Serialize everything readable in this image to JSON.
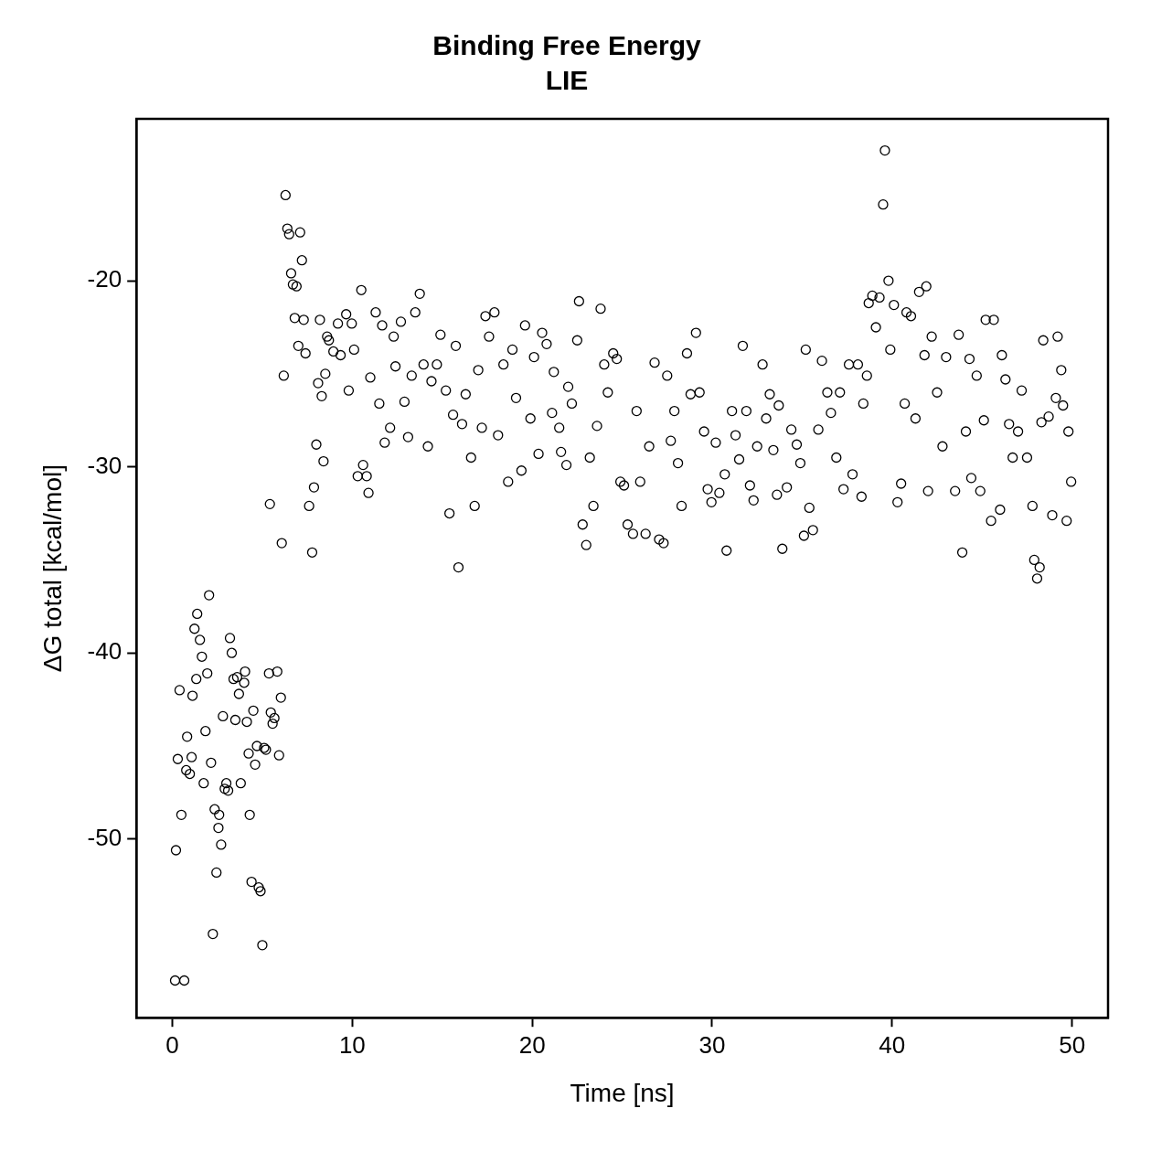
{
  "chart_data": {
    "type": "scatter",
    "title": "Binding Free Energy",
    "subtitle": "LIE",
    "xlabel": "Time [ns]",
    "ylabel": "ΔG total [kcal/mol]",
    "xlim": [
      -2,
      52
    ],
    "ylim": [
      -59.6,
      -11.3
    ],
    "xticks": [
      0,
      10,
      20,
      30,
      40,
      50
    ],
    "yticks": [
      -50,
      -40,
      -30,
      -20
    ],
    "grid": false,
    "legend": false,
    "marker": "circle",
    "series": [
      {
        "color": "#000000",
        "x": [
          0.15,
          0.66,
          0.2,
          0.5,
          0.4,
          0.3,
          0.77,
          0.97,
          0.82,
          1.07,
          1.12,
          1.23,
          1.38,
          1.53,
          1.64,
          1.33,
          1.74,
          1.84,
          1.94,
          2.04,
          2.15,
          2.25,
          2.35,
          2.45,
          2.56,
          2.6,
          2.71,
          2.81,
          2.91,
          3.0,
          3.1,
          3.2,
          3.3,
          3.4,
          3.5,
          3.6,
          3.7,
          3.8,
          3.99,
          4.04,
          4.14,
          4.24,
          4.3,
          4.4,
          4.5,
          4.6,
          4.7,
          4.8,
          4.9,
          5.0,
          5.1,
          5.2,
          5.37,
          5.47,
          5.57,
          5.67,
          5.83,
          5.93,
          6.03,
          5.42,
          6.08,
          6.19,
          6.29,
          6.39,
          6.49,
          6.6,
          6.7,
          6.8,
          6.9,
          7.0,
          7.1,
          7.2,
          7.3,
          7.4,
          7.6,
          7.77,
          7.87,
          8.0,
          8.1,
          8.2,
          8.3,
          8.4,
          8.5,
          8.6,
          8.7,
          8.95,
          9.2,
          9.35,
          9.66,
          9.8,
          9.97,
          10.1,
          10.3,
          10.5,
          10.6,
          10.8,
          10.9,
          11.0,
          11.3,
          11.5,
          11.66,
          11.8,
          12.1,
          12.3,
          12.4,
          12.7,
          12.9,
          13.1,
          13.3,
          13.5,
          13.75,
          13.96,
          14.2,
          14.4,
          14.7,
          14.9,
          15.2,
          15.4,
          15.6,
          15.75,
          15.9,
          16.1,
          16.3,
          16.6,
          16.8,
          17.0,
          17.2,
          17.4,
          17.6,
          17.9,
          18.1,
          18.4,
          18.66,
          18.9,
          19.1,
          19.4,
          19.6,
          19.9,
          20.1,
          20.35,
          20.55,
          20.8,
          21.1,
          21.2,
          21.5,
          21.6,
          21.9,
          22.0,
          22.2,
          22.5,
          22.6,
          22.8,
          23.0,
          23.2,
          23.4,
          23.6,
          23.8,
          24.0,
          24.2,
          24.5,
          24.7,
          24.9,
          25.1,
          25.3,
          25.6,
          25.8,
          26.0,
          26.3,
          26.5,
          26.8,
          27.05,
          27.3,
          27.5,
          27.7,
          27.9,
          28.1,
          28.3,
          28.6,
          28.8,
          29.1,
          29.3,
          29.55,
          29.75,
          29.96,
          30.2,
          30.4,
          30.7,
          30.8,
          31.1,
          31.3,
          31.5,
          31.7,
          31.9,
          32.1,
          32.3,
          32.5,
          32.8,
          33.0,
          33.2,
          33.4,
          33.6,
          33.7,
          33.9,
          34.15,
          34.4,
          34.7,
          34.9,
          35.1,
          35.2,
          35.4,
          35.6,
          35.9,
          36.1,
          36.4,
          36.6,
          36.9,
          37.1,
          37.3,
          37.6,
          37.8,
          38.1,
          38.3,
          38.4,
          38.6,
          38.7,
          38.9,
          39.1,
          39.3,
          39.5,
          39.6,
          39.8,
          39.9,
          40.1,
          40.3,
          40.5,
          40.7,
          40.8,
          41.05,
          41.3,
          41.5,
          41.8,
          41.9,
          42.0,
          42.2,
          42.5,
          42.8,
          43.0,
          43.5,
          43.7,
          43.9,
          44.1,
          44.3,
          44.4,
          44.7,
          44.9,
          45.1,
          45.2,
          45.5,
          45.65,
          46.0,
          46.1,
          46.3,
          46.5,
          46.7,
          47.0,
          47.2,
          47.5,
          47.8,
          47.9,
          48.06,
          48.2,
          48.3,
          48.4,
          48.7,
          48.9,
          49.1,
          49.2,
          49.4,
          49.5,
          49.7,
          49.8,
          49.95
        ],
        "values": [
          -57.6,
          -57.6,
          -50.6,
          -48.7,
          -42.0,
          -45.7,
          -46.3,
          -46.5,
          -44.5,
          -45.6,
          -42.3,
          -38.7,
          -37.9,
          -39.3,
          -40.2,
          -41.4,
          -47.0,
          -44.2,
          -41.1,
          -36.9,
          -45.9,
          -55.1,
          -48.4,
          -51.8,
          -49.4,
          -48.7,
          -50.3,
          -43.4,
          -47.3,
          -47.0,
          -47.4,
          -39.2,
          -40.0,
          -41.4,
          -43.6,
          -41.3,
          -42.2,
          -47.0,
          -41.6,
          -41.0,
          -43.7,
          -45.4,
          -48.7,
          -52.3,
          -43.1,
          -46.0,
          -45.0,
          -52.6,
          -52.8,
          -55.7,
          -45.1,
          -45.2,
          -41.1,
          -43.2,
          -43.8,
          -43.5,
          -41.0,
          -45.5,
          -42.4,
          -32.0,
          -34.1,
          -25.1,
          -15.4,
          -17.2,
          -17.5,
          -19.6,
          -20.2,
          -22.0,
          -20.3,
          -23.5,
          -17.4,
          -18.9,
          -22.1,
          -23.9,
          -32.1,
          -34.6,
          -31.1,
          -28.8,
          -25.5,
          -22.1,
          -26.2,
          -29.7,
          -25.0,
          -23.0,
          -23.2,
          -23.8,
          -22.3,
          -24.0,
          -21.8,
          -25.9,
          -22.3,
          -23.7,
          -30.5,
          -20.5,
          -29.9,
          -30.5,
          -31.4,
          -25.2,
          -21.7,
          -26.6,
          -22.4,
          -28.7,
          -27.9,
          -23.0,
          -24.6,
          -22.2,
          -26.5,
          -28.4,
          -25.1,
          -21.7,
          -20.7,
          -24.5,
          -28.9,
          -25.4,
          -24.5,
          -22.9,
          -25.9,
          -32.5,
          -27.2,
          -23.5,
          -35.4,
          -27.7,
          -26.1,
          -29.5,
          -32.1,
          -24.8,
          -27.9,
          -21.9,
          -23.0,
          -21.7,
          -28.3,
          -24.5,
          -30.8,
          -23.7,
          -26.3,
          -30.2,
          -22.4,
          -27.4,
          -24.1,
          -29.3,
          -22.8,
          -23.4,
          -27.1,
          -24.9,
          -27.9,
          -29.2,
          -29.9,
          -25.7,
          -26.6,
          -23.2,
          -21.1,
          -33.1,
          -34.2,
          -29.5,
          -32.1,
          -27.8,
          -21.5,
          -24.5,
          -26.0,
          -23.9,
          -24.2,
          -30.8,
          -31.0,
          -33.1,
          -33.6,
          -27.0,
          -30.8,
          -33.6,
          -28.9,
          -24.4,
          -33.9,
          -34.1,
          -25.1,
          -28.6,
          -27.0,
          -29.8,
          -32.1,
          -23.9,
          -26.1,
          -22.8,
          -26.0,
          -28.1,
          -31.2,
          -31.9,
          -28.7,
          -31.4,
          -30.4,
          -34.5,
          -27.0,
          -28.3,
          -29.6,
          -23.5,
          -27.0,
          -31.0,
          -31.8,
          -28.9,
          -24.5,
          -27.4,
          -26.1,
          -29.1,
          -31.5,
          -26.7,
          -34.4,
          -31.1,
          -28.0,
          -28.8,
          -29.8,
          -33.7,
          -23.7,
          -32.2,
          -33.4,
          -28.0,
          -24.3,
          -26.0,
          -27.1,
          -29.5,
          -26.0,
          -31.2,
          -24.5,
          -30.4,
          -24.5,
          -31.6,
          -26.6,
          -25.1,
          -21.2,
          -20.8,
          -22.5,
          -20.9,
          -15.9,
          -13.0,
          -20.0,
          -23.7,
          -21.3,
          -31.9,
          -30.9,
          -26.6,
          -21.7,
          -21.9,
          -27.4,
          -20.6,
          -24.0,
          -20.3,
          -31.3,
          -23.0,
          -26.0,
          -28.9,
          -24.1,
          -31.3,
          -22.9,
          -34.6,
          -28.1,
          -24.2,
          -30.6,
          -25.1,
          -31.3,
          -27.5,
          -22.1,
          -32.9,
          -22.1,
          -32.3,
          -24.0,
          -25.3,
          -27.7,
          -29.5,
          -28.1,
          -25.9,
          -29.5,
          -32.1,
          -35.0,
          -36.0,
          -35.4,
          -27.6,
          -23.2,
          -27.3,
          -32.6,
          -26.3,
          -23.0,
          -24.8,
          -26.7,
          -32.9,
          -28.1,
          -30.8
        ]
      }
    ]
  }
}
